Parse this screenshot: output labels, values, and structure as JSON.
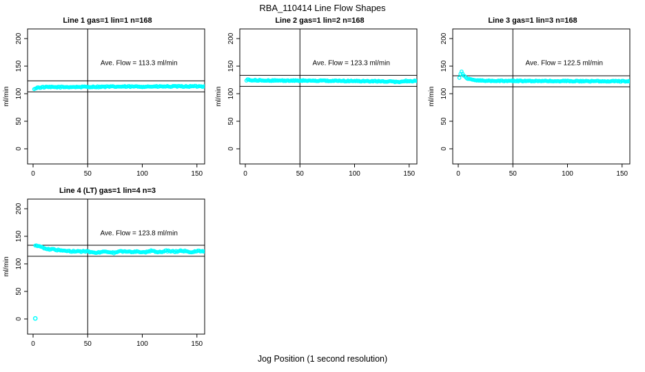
{
  "page": {
    "title": "RBA_110414  Line Flow Shapes",
    "xlabel": "Jog Position (1 second resolution)"
  },
  "colors": {
    "point": "#00FFFF",
    "axis": "#000000",
    "background": "#FFFFFF"
  },
  "chart_data": [
    {
      "type": "scatter",
      "title": "Line 1 gas=1 lin=1 n=168",
      "n": 168,
      "ave_flow": 113.3,
      "ave_label": "Ave. Flow =  113.3  ml/min",
      "ylabel": "ml/min",
      "x_ticks": [
        0,
        50,
        100,
        150
      ],
      "y_ticks": [
        0,
        50,
        100,
        150,
        200
      ],
      "ref_line_upper": 123.3,
      "ref_line_lower": 103.3,
      "v_line": 50,
      "x_start": 1,
      "x_end": 168,
      "noise": 1.0,
      "profile": [
        [
          1,
          107.5
        ],
        [
          2,
          110
        ],
        [
          4,
          111
        ],
        [
          10,
          111.8
        ],
        [
          40,
          112.2
        ],
        [
          80,
          112.8
        ],
        [
          120,
          113
        ],
        [
          168,
          113.5
        ]
      ],
      "outliers": []
    },
    {
      "type": "scatter",
      "title": "Line 2 gas=1 lin=2 n=168",
      "n": 168,
      "ave_flow": 123.3,
      "ave_label": "Ave. Flow =  123.3  ml/min",
      "ylabel": "ml/min",
      "x_ticks": [
        0,
        50,
        100,
        150
      ],
      "y_ticks": [
        0,
        50,
        100,
        150,
        200
      ],
      "ref_line_upper": 133.3,
      "ref_line_lower": 113.3,
      "v_line": 50,
      "x_start": 1,
      "x_end": 168,
      "noise": 0.9,
      "profile": [
        [
          1,
          124.5
        ],
        [
          2,
          125.5
        ],
        [
          6,
          124.5
        ],
        [
          20,
          124
        ],
        [
          60,
          123.5
        ],
        [
          100,
          123
        ],
        [
          135,
          122
        ],
        [
          142,
          121
        ],
        [
          146,
          123
        ],
        [
          168,
          123
        ]
      ],
      "outliers": []
    },
    {
      "type": "scatter",
      "title": "Line 3 gas=1 lin=3 n=168",
      "n": 168,
      "ave_flow": 122.5,
      "ave_label": "Ave. Flow =  122.5  ml/min",
      "ylabel": "ml/min",
      "x_ticks": [
        0,
        50,
        100,
        150
      ],
      "y_ticks": [
        0,
        50,
        100,
        150,
        200
      ],
      "ref_line_upper": 132.5,
      "ref_line_lower": 112.5,
      "v_line": 50,
      "x_start": 1,
      "x_end": 168,
      "noise": 0.8,
      "profile": [
        [
          1,
          129
        ],
        [
          2,
          136
        ],
        [
          3,
          140
        ],
        [
          4,
          137
        ],
        [
          5,
          133
        ],
        [
          7,
          129
        ],
        [
          10,
          126.5
        ],
        [
          15,
          124.5
        ],
        [
          25,
          123.5
        ],
        [
          60,
          123
        ],
        [
          168,
          122.5
        ]
      ],
      "outliers": []
    },
    {
      "type": "scatter",
      "title": "Line 4 (LT) gas=1 lin=4 n=3",
      "n": 3,
      "ave_flow": 123.8,
      "ave_label": "Ave. Flow =  123.8  ml/min",
      "ylabel": "ml/min",
      "x_ticks": [
        0,
        50,
        100,
        150
      ],
      "y_ticks": [
        0,
        50,
        100,
        150,
        200
      ],
      "ref_line_upper": 133.8,
      "ref_line_lower": 113.8,
      "v_line": 50,
      "x_start": 2,
      "x_end": 168,
      "noise": 1.2,
      "profile": [
        [
          2,
          133
        ],
        [
          4,
          132
        ],
        [
          8,
          130
        ],
        [
          12,
          128
        ],
        [
          16,
          126.5
        ],
        [
          22,
          125
        ],
        [
          28,
          124
        ],
        [
          34,
          123
        ],
        [
          42,
          122.5
        ],
        [
          50,
          123
        ],
        [
          56,
          119.5
        ],
        [
          62,
          121.5
        ],
        [
          68,
          122
        ],
        [
          74,
          120
        ],
        [
          80,
          122.5
        ],
        [
          88,
          121.5
        ],
        [
          95,
          123
        ],
        [
          102,
          120.5
        ],
        [
          108,
          123.5
        ],
        [
          115,
          121
        ],
        [
          122,
          123.5
        ],
        [
          130,
          122
        ],
        [
          137,
          124
        ],
        [
          143,
          121.5
        ],
        [
          150,
          123
        ],
        [
          168,
          122
        ]
      ],
      "outliers": [
        [
          2,
          1
        ]
      ]
    }
  ]
}
